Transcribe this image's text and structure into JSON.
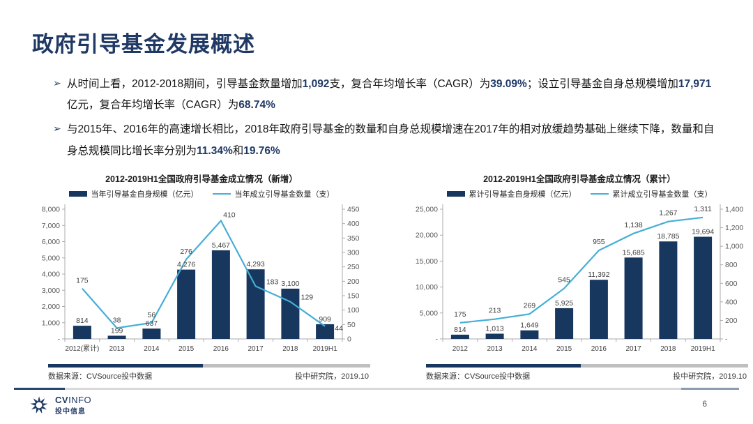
{
  "slide": {
    "title": "政府引导基金发展概述",
    "bullet_marker": "➢",
    "bullets": [
      {
        "segments": [
          {
            "t": "从时间上看，2012-2018期间，引导基金数量增加",
            "b": false
          },
          {
            "t": "1,092",
            "b": true
          },
          {
            "t": "支，复合年均增长率（CAGR）为",
            "b": false
          },
          {
            "t": "39.09%",
            "b": true
          },
          {
            "t": "；设立引导基金自身总规模增加",
            "b": false
          },
          {
            "t": "17,971",
            "b": true
          },
          {
            "t": "亿元，复合年均增长率（CAGR）为",
            "b": false
          },
          {
            "t": "68.74%",
            "b": true
          }
        ]
      },
      {
        "segments": [
          {
            "t": "与2015年、2016年的高速增长相比，2018年政府引导基金的数量和自身总规模增速在2017年的相对放缓趋势基础上继续下降，数量和自身总规模同比增长率分别为",
            "b": false
          },
          {
            "t": "11.34%",
            "b": true
          },
          {
            "t": "和",
            "b": false
          },
          {
            "t": "19.76%",
            "b": true
          }
        ]
      }
    ],
    "logo": {
      "latin_bold": "CV",
      "latin_light": "INFO",
      "cn": "投中信息"
    },
    "page_number": "6"
  },
  "colors": {
    "bar": "#17375E",
    "line": "#44AED6",
    "title_navy": "#1F3864",
    "divider_navy": "#17375E",
    "divider_gray": "#BFBFBF"
  },
  "chart_data": [
    {
      "type": "bar+line",
      "title": "2012-2019H1全国政府引导基金成立情况（新增）",
      "categories": [
        "2012(累计)",
        "2013",
        "2014",
        "2015",
        "2016",
        "2017",
        "2018",
        "2019H1"
      ],
      "series": [
        {
          "name": "当年引导基金自身规模（亿元）",
          "type": "bar",
          "axis": "left",
          "values": [
            814,
            199,
            637,
            4276,
            5467,
            4293,
            3100,
            909
          ],
          "labels": [
            "814",
            "199",
            "637",
            "4,276",
            "5,467",
            "4,293",
            "3,100",
            "909"
          ]
        },
        {
          "name": "当年成立引导基金数量（支）",
          "type": "line",
          "axis": "right",
          "values": [
            175,
            38,
            56,
            276,
            410,
            183,
            129,
            44
          ],
          "labels": [
            "175",
            "38",
            "56",
            "276",
            "410",
            "183",
            "129",
            "44"
          ],
          "label_offsets": [
            [
              0,
              -8
            ],
            [
              0,
              -8
            ],
            [
              0,
              -8
            ],
            [
              0,
              -8
            ],
            [
              12,
              -5
            ],
            [
              24,
              -3
            ],
            [
              24,
              -3
            ],
            [
              20,
              6
            ]
          ]
        }
      ],
      "left_axis": {
        "min": 0,
        "max": 8000,
        "tick_values": [
          0,
          1000,
          2000,
          3000,
          4000,
          5000,
          6000,
          7000,
          8000
        ],
        "tick_labels": [
          "-",
          "1,000",
          "2,000",
          "3,000",
          "4,000",
          "5,000",
          "6,000",
          "7,000",
          "8,000"
        ]
      },
      "right_axis": {
        "min": 0,
        "max": 450,
        "tick_values": [
          0,
          50,
          100,
          150,
          200,
          250,
          300,
          350,
          400,
          450
        ],
        "tick_labels": [
          "0",
          "50",
          "100",
          "150",
          "200",
          "250",
          "300",
          "350",
          "400",
          "450"
        ]
      },
      "grid": false,
      "legend_position": "top",
      "source_left": "数据来源：CVSource投中数据",
      "source_right": "投中研究院，2019.10"
    },
    {
      "type": "bar+line",
      "title": "2012-2019H1全国政府引导基金成立情况（累计）",
      "categories": [
        "2012",
        "2013",
        "2014",
        "2015",
        "2016",
        "2017",
        "2018",
        "2019H1"
      ],
      "series": [
        {
          "name": "累计引导基金自身规模（亿元）",
          "type": "bar",
          "axis": "left",
          "values": [
            814,
            1013,
            1649,
            5925,
            11392,
            15685,
            18785,
            19694
          ],
          "labels": [
            "814",
            "1,013",
            "1,649",
            "5,925",
            "11,392",
            "15,685",
            "18,785",
            "19,694"
          ]
        },
        {
          "name": "累计成立引导基金数量（支）",
          "type": "line",
          "axis": "right",
          "values": [
            175,
            213,
            269,
            545,
            955,
            1138,
            1267,
            1311
          ],
          "labels": [
            "175",
            "213",
            "269",
            "545",
            "955",
            "1,138",
            "1,267",
            "1,311"
          ],
          "label_offsets": [
            [
              0,
              -9
            ],
            [
              0,
              -9
            ],
            [
              0,
              -9
            ],
            [
              0,
              -9
            ],
            [
              0,
              -9
            ],
            [
              0,
              -9
            ],
            [
              0,
              -9
            ],
            [
              0,
              -9
            ]
          ]
        }
      ],
      "left_axis": {
        "min": 0,
        "max": 25000,
        "tick_values": [
          0,
          5000,
          10000,
          15000,
          20000,
          25000
        ],
        "tick_labels": [
          "-",
          "5,000",
          "10,000",
          "15,000",
          "20,000",
          "25,000"
        ]
      },
      "right_axis": {
        "min": 0,
        "max": 1400,
        "tick_values": [
          0,
          200,
          400,
          600,
          800,
          1000,
          1200,
          1400
        ],
        "tick_labels": [
          "-",
          "200",
          "400",
          "600",
          "800",
          "1,000",
          "1,200",
          "1,400"
        ]
      },
      "grid": false,
      "legend_position": "top",
      "source_left": "数据来源：CVSource投中数据",
      "source_right": "投中研究院，2019.10"
    }
  ]
}
